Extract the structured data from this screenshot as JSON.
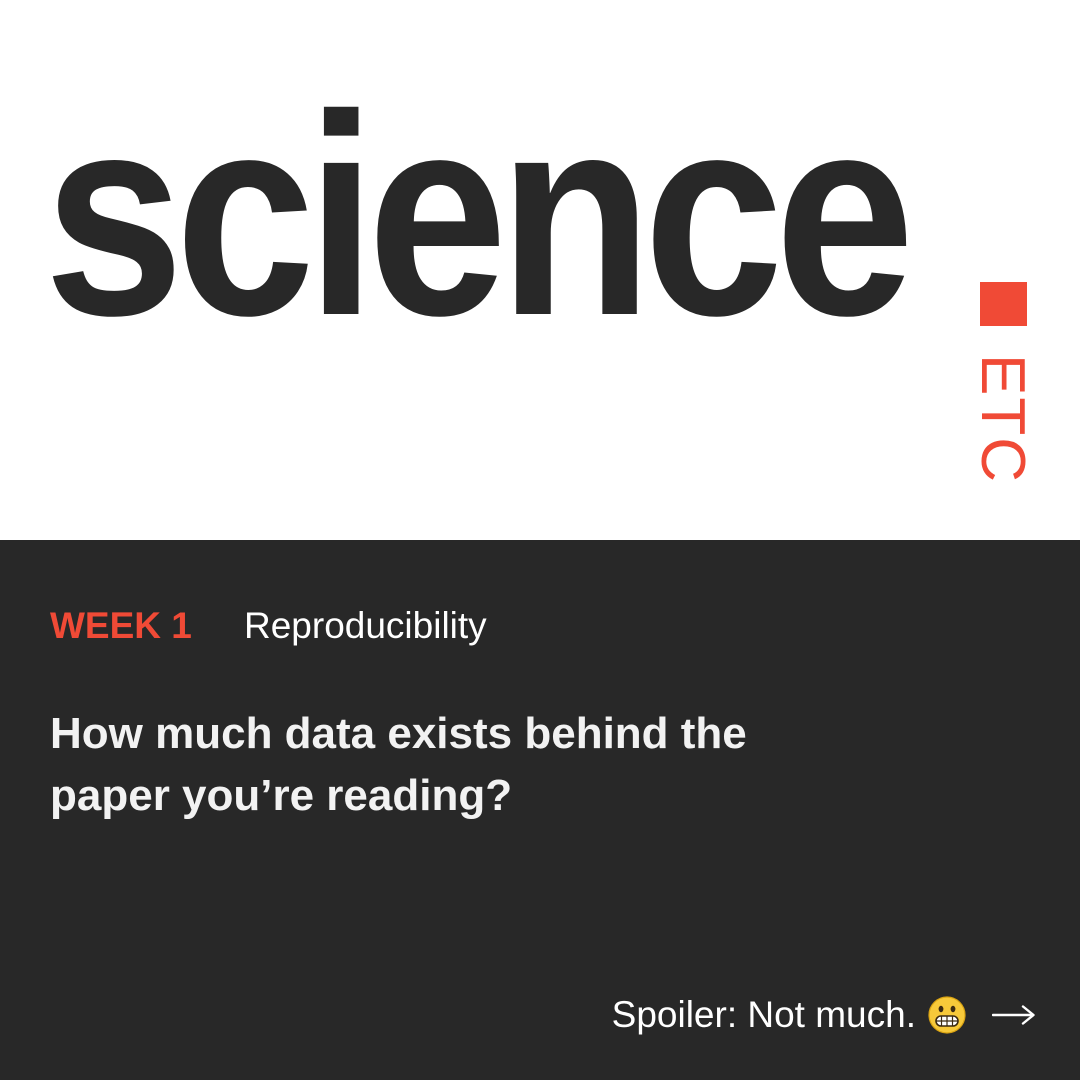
{
  "brand": {
    "wordmark": "science",
    "sub": "ETC",
    "accent_color": "#f04a36",
    "ink_color": "#282828",
    "panel_color": "#282828"
  },
  "card": {
    "week_label": "WEEK 1",
    "topic": "Reproducibility",
    "headline": "How much data exists behind the paper you’re reading?",
    "spoiler": "Spoiler: Not much.",
    "emoji_icon": "grimacing-face-icon",
    "arrow_icon": "arrow-right-icon"
  }
}
